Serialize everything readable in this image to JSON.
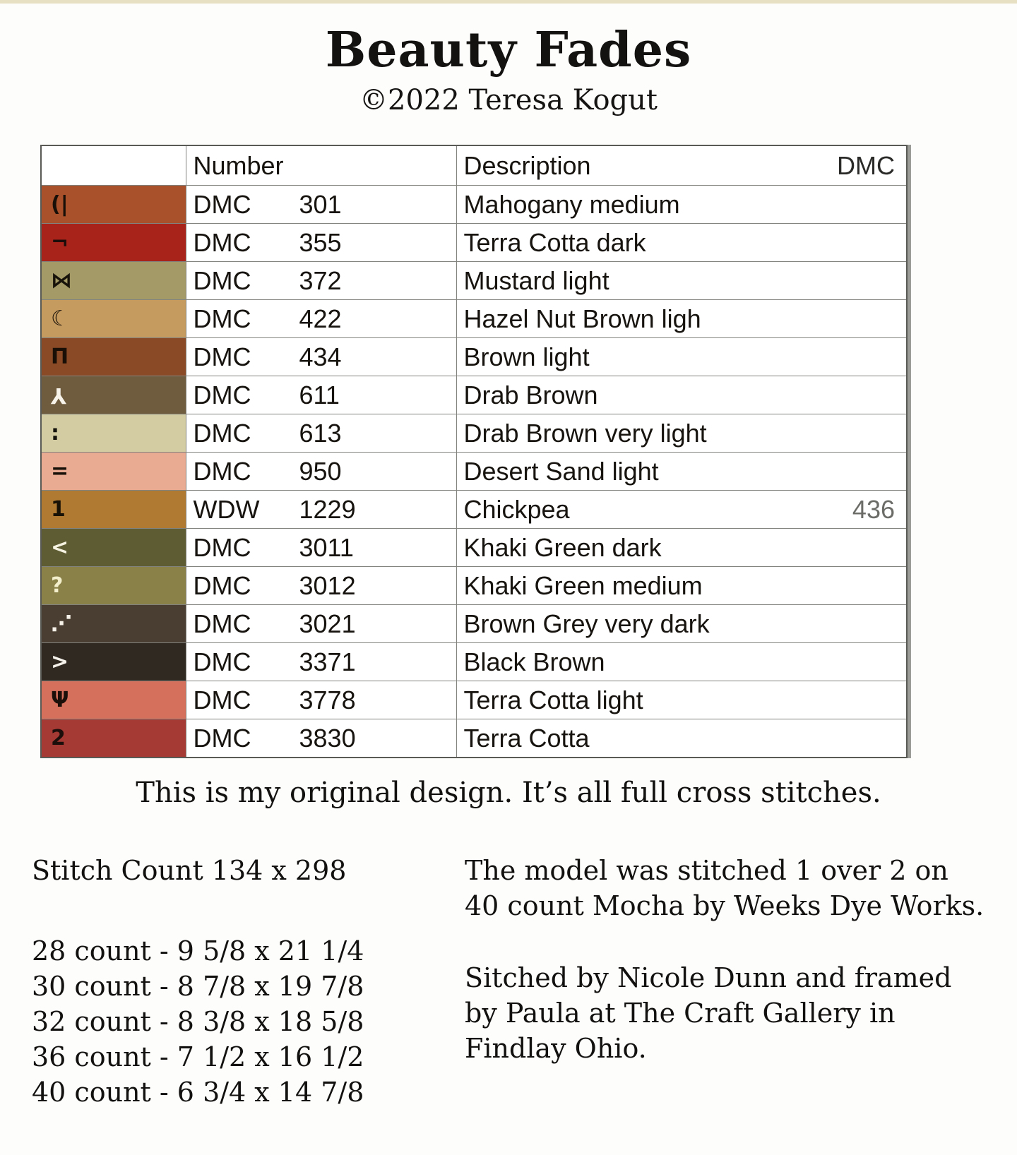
{
  "header": {
    "title": "Beauty Fades",
    "copyright": "©2022 Teresa Kogut"
  },
  "key_table": {
    "columns": {
      "number": "Number",
      "description": "Description",
      "dmc": "DMC"
    },
    "rows": [
      {
        "symbol_name": "paren-bar-symbol",
        "glyph": "(|",
        "glyph_color": "#181008",
        "rotate": false,
        "swatch": "#a9512a",
        "brand": "DMC",
        "code": "301",
        "description": "Mahogany medium",
        "dmc_alt": ""
      },
      {
        "symbol_name": "not-sign-symbol",
        "glyph": "¬",
        "glyph_color": "#1c0d0a",
        "rotate": false,
        "swatch": "#a8241b",
        "brand": "DMC",
        "code": "355",
        "description": "Terra Cotta dark",
        "dmc_alt": ""
      },
      {
        "symbol_name": "bowtie-symbol",
        "glyph": "⋈",
        "glyph_color": "#17130a",
        "rotate": false,
        "swatch": "#a49a67",
        "brand": "DMC",
        "code": "372",
        "description": "Mustard light",
        "dmc_alt": ""
      },
      {
        "symbol_name": "crescent-moon-symbol",
        "glyph": "☾",
        "glyph_color": "#191209",
        "rotate": false,
        "swatch": "#c69b5f",
        "brand": "DMC",
        "code": "422",
        "description": "Hazel Nut Brown ligh",
        "dmc_alt": ""
      },
      {
        "symbol_name": "pi-gate-symbol",
        "glyph": "Π",
        "glyph_color": "#190f07",
        "rotate": false,
        "swatch": "#8a4a26",
        "brand": "DMC",
        "code": "434",
        "description": "Brown light",
        "dmc_alt": ""
      },
      {
        "symbol_name": "trident-symbol",
        "glyph": "Y",
        "glyph_color": "#f7f3ea",
        "rotate": true,
        "swatch": "#6f5b3d",
        "brand": "DMC",
        "code": "611",
        "description": "Drab Brown",
        "dmc_alt": ""
      },
      {
        "symbol_name": "colon-symbol",
        "glyph": ":",
        "glyph_color": "#14120c",
        "rotate": false,
        "swatch": "#d3cca2",
        "brand": "DMC",
        "code": "613",
        "description": "Drab Brown very light",
        "dmc_alt": ""
      },
      {
        "symbol_name": "equals-symbol",
        "glyph": "=",
        "glyph_color": "#171009",
        "rotate": false,
        "swatch": "#e9ac92",
        "brand": "DMC",
        "code": "950",
        "description": "Desert Sand light",
        "dmc_alt": ""
      },
      {
        "symbol_name": "one-symbol",
        "glyph": "1",
        "glyph_color": "#181206",
        "rotate": false,
        "swatch": "#b17a33",
        "brand": "WDW",
        "code": "1229",
        "description": "Chickpea",
        "dmc_alt": "436"
      },
      {
        "symbol_name": "less-than-symbol",
        "glyph": "<",
        "glyph_color": "#f6f3e3",
        "rotate": false,
        "swatch": "#5d5c32",
        "brand": "DMC",
        "code": "3011",
        "description": "Khaki Green dark",
        "dmc_alt": ""
      },
      {
        "symbol_name": "question-mark-symbol",
        "glyph": "?",
        "glyph_color": "#f3eecb",
        "rotate": false,
        "swatch": "#8a8148",
        "brand": "DMC",
        "code": "3012",
        "description": "Khaki Green medium",
        "dmc_alt": ""
      },
      {
        "symbol_name": "diagonal-dots-symbol",
        "glyph": "⋰",
        "glyph_color": "#f6f2ea",
        "rotate": false,
        "swatch": "#4a3d31",
        "brand": "DMC",
        "code": "3021",
        "description": "Brown Grey very dark",
        "dmc_alt": ""
      },
      {
        "symbol_name": "greater-than-symbol",
        "glyph": ">",
        "glyph_color": "#f5f2ec",
        "rotate": false,
        "swatch": "#2f2921",
        "brand": "DMC",
        "code": "3371",
        "description": "Black Brown",
        "dmc_alt": ""
      },
      {
        "symbol_name": "microphone-symbol",
        "glyph": "Ψ",
        "glyph_color": "#1c0f0a",
        "rotate": false,
        "swatch": "#d4705c",
        "brand": "DMC",
        "code": "3778",
        "description": "Terra Cotta light",
        "dmc_alt": ""
      },
      {
        "symbol_name": "two-symbol",
        "glyph": "2",
        "glyph_color": "#1b0e0b",
        "rotate": false,
        "swatch": "#a43a33",
        "brand": "DMC",
        "code": "3830",
        "description": "Terra Cotta",
        "dmc_alt": ""
      }
    ]
  },
  "notes": {
    "design_note": "This is my original design. It’s all full cross stitches.",
    "stitch_count": "Stitch Count 134 x 298",
    "fabric_counts": [
      "28 count - 9 5/8 x 21 1/4",
      "30 count - 8 7/8 x 19 7/8",
      "32 count - 8 3/8 x 18 5/8",
      "36 count - 7 1/2 x 16 1/2",
      "40 count - 6 3/4 x 14 7/8"
    ],
    "model_note": "The model was stitched 1 over 2 on 40 count Mocha by Weeks Dye Works.",
    "framing_note": "Sitched by Nicole Dunn and framed by Paula at The Craft Gallery in Findlay Ohio."
  }
}
